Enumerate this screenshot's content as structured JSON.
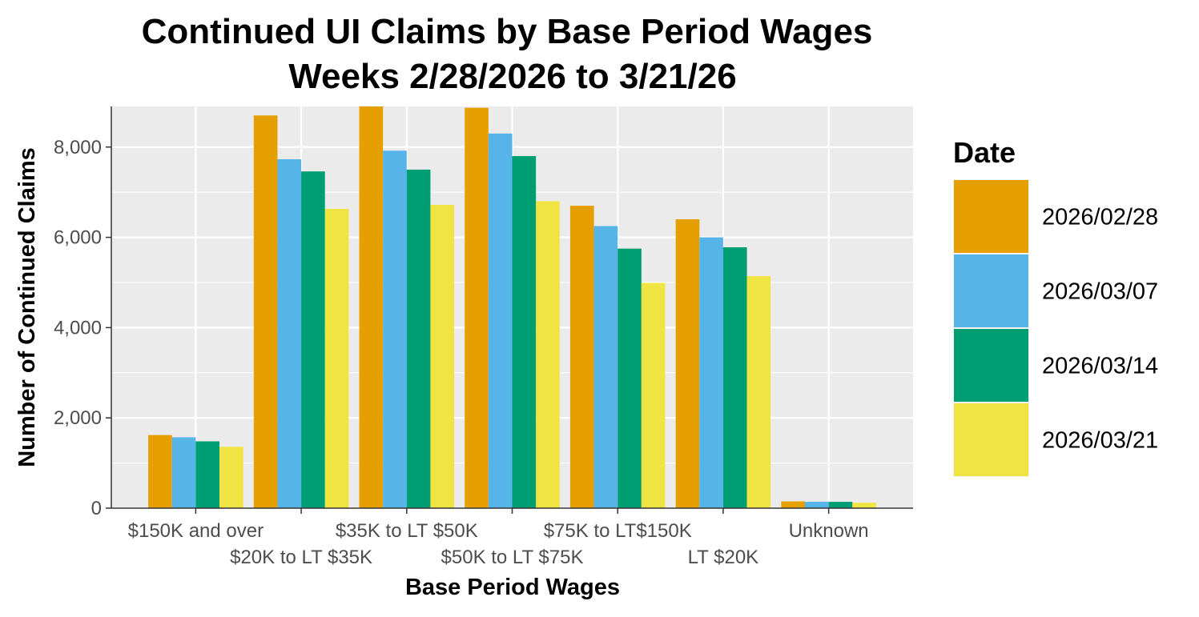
{
  "chart_data": {
    "type": "bar",
    "title": "Continued UI Claims by Base Period Wages",
    "subtitle": "Weeks 2/28/2026 to 3/21/26",
    "xlabel": "Base Period Wages",
    "ylabel": "Number of Continued Claims",
    "ylim": [
      0,
      8900
    ],
    "yticks": [
      0,
      2000,
      4000,
      6000,
      8000
    ],
    "ytick_labels": [
      "0",
      "2,000",
      "4,000",
      "6,000",
      "8,000"
    ],
    "grid": true,
    "legend_title": "Date",
    "legend_position": "right",
    "categories": [
      "$150K and over",
      "$20K to LT $35K",
      "$35K to LT $50K",
      "$50K to LT $75K",
      "$75K to LT$150K",
      "LT $20K",
      "Unknown"
    ],
    "series": [
      {
        "name": "2026/02/28",
        "color": "#E69F00",
        "values": [
          1620,
          8700,
          8900,
          8870,
          6700,
          6400,
          150
        ]
      },
      {
        "name": "2026/03/07",
        "color": "#56B4E9",
        "values": [
          1570,
          7730,
          7920,
          8300,
          6250,
          6000,
          140
        ]
      },
      {
        "name": "2026/03/14",
        "color": "#009E73",
        "values": [
          1480,
          7460,
          7500,
          7800,
          5750,
          5780,
          140
        ]
      },
      {
        "name": "2026/03/21",
        "color": "#F0E442",
        "values": [
          1360,
          6630,
          6720,
          6800,
          4990,
          5140,
          120
        ]
      }
    ]
  }
}
